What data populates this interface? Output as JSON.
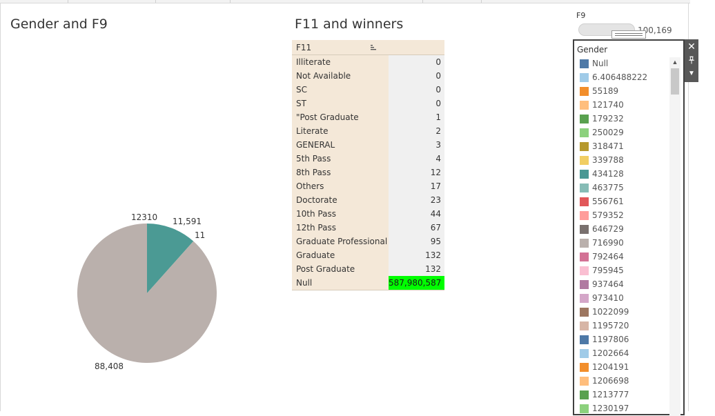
{
  "sheets": {
    "left_title": "Gender and F9",
    "middle_title": "F11 and winners"
  },
  "chart_data": [
    {
      "type": "pie",
      "title": "Gender and F9",
      "slices": [
        {
          "label": "11,591",
          "value": 11591,
          "color": "#4b9a94"
        },
        {
          "label": "11",
          "value": 11,
          "color": "#59a14f"
        },
        {
          "label": "88,408",
          "value": 88408,
          "color": "#bab0ac"
        }
      ],
      "extra_labels": [
        "12310"
      ]
    },
    {
      "type": "table",
      "title": "F11 and winners",
      "header": "F11",
      "rows": [
        {
          "label": "Illiterate",
          "value": "0"
        },
        {
          "label": "Not Available",
          "value": "0"
        },
        {
          "label": "SC",
          "value": "0"
        },
        {
          "label": "ST",
          "value": "0"
        },
        {
          "label": "\"Post Graduate",
          "value": "1"
        },
        {
          "label": "Literate",
          "value": "2"
        },
        {
          "label": "GENERAL",
          "value": "3"
        },
        {
          "label": "5th Pass",
          "value": "4"
        },
        {
          "label": "8th Pass",
          "value": "12"
        },
        {
          "label": "Others",
          "value": "17"
        },
        {
          "label": "Doctorate",
          "value": "23"
        },
        {
          "label": "10th Pass",
          "value": "44"
        },
        {
          "label": "12th Pass",
          "value": "67"
        },
        {
          "label": "Graduate Professional",
          "value": "95"
        },
        {
          "label": "Graduate",
          "value": "132"
        },
        {
          "label": "Post Graduate",
          "value": "132"
        },
        {
          "label": "Null",
          "value": "587,980,587",
          "highlight": "#00ff00"
        }
      ]
    }
  ],
  "f9_filter": {
    "title": "F9",
    "value": "100,169"
  },
  "legend": {
    "title": "Gender",
    "items": [
      {
        "label": "Null",
        "color": "#4e79a7"
      },
      {
        "label": "6.406488222",
        "color": "#a0cbe8"
      },
      {
        "label": "55189",
        "color": "#f28e2b"
      },
      {
        "label": "121740",
        "color": "#ffbe7d"
      },
      {
        "label": "179232",
        "color": "#59a14f"
      },
      {
        "label": "250029",
        "color": "#8cd17d"
      },
      {
        "label": "318471",
        "color": "#b6992d"
      },
      {
        "label": "339788",
        "color": "#f1ce63"
      },
      {
        "label": "434128",
        "color": "#499894"
      },
      {
        "label": "463775",
        "color": "#86bcb6"
      },
      {
        "label": "556761",
        "color": "#e15759"
      },
      {
        "label": "579352",
        "color": "#ff9d9a"
      },
      {
        "label": "646729",
        "color": "#79706e"
      },
      {
        "label": "716990",
        "color": "#bab0ac"
      },
      {
        "label": "792464",
        "color": "#d37295"
      },
      {
        "label": "795945",
        "color": "#fabfd2"
      },
      {
        "label": "937464",
        "color": "#b07aa1"
      },
      {
        "label": "973410",
        "color": "#d4a6c8"
      },
      {
        "label": "1022099",
        "color": "#9d7660"
      },
      {
        "label": "1195720",
        "color": "#d7b5a6"
      },
      {
        "label": "1197806",
        "color": "#4e79a7"
      },
      {
        "label": "1202664",
        "color": "#a0cbe8"
      },
      {
        "label": "1204191",
        "color": "#f28e2b"
      },
      {
        "label": "1206698",
        "color": "#ffbe7d"
      },
      {
        "label": "1213777",
        "color": "#59a14f"
      },
      {
        "label": "1230197",
        "color": "#8cd17d"
      }
    ]
  },
  "toolbar": {
    "close_icon": "close-icon",
    "pin_icon": "pin-icon",
    "menu_icon": "dropdown-arrow-icon"
  }
}
